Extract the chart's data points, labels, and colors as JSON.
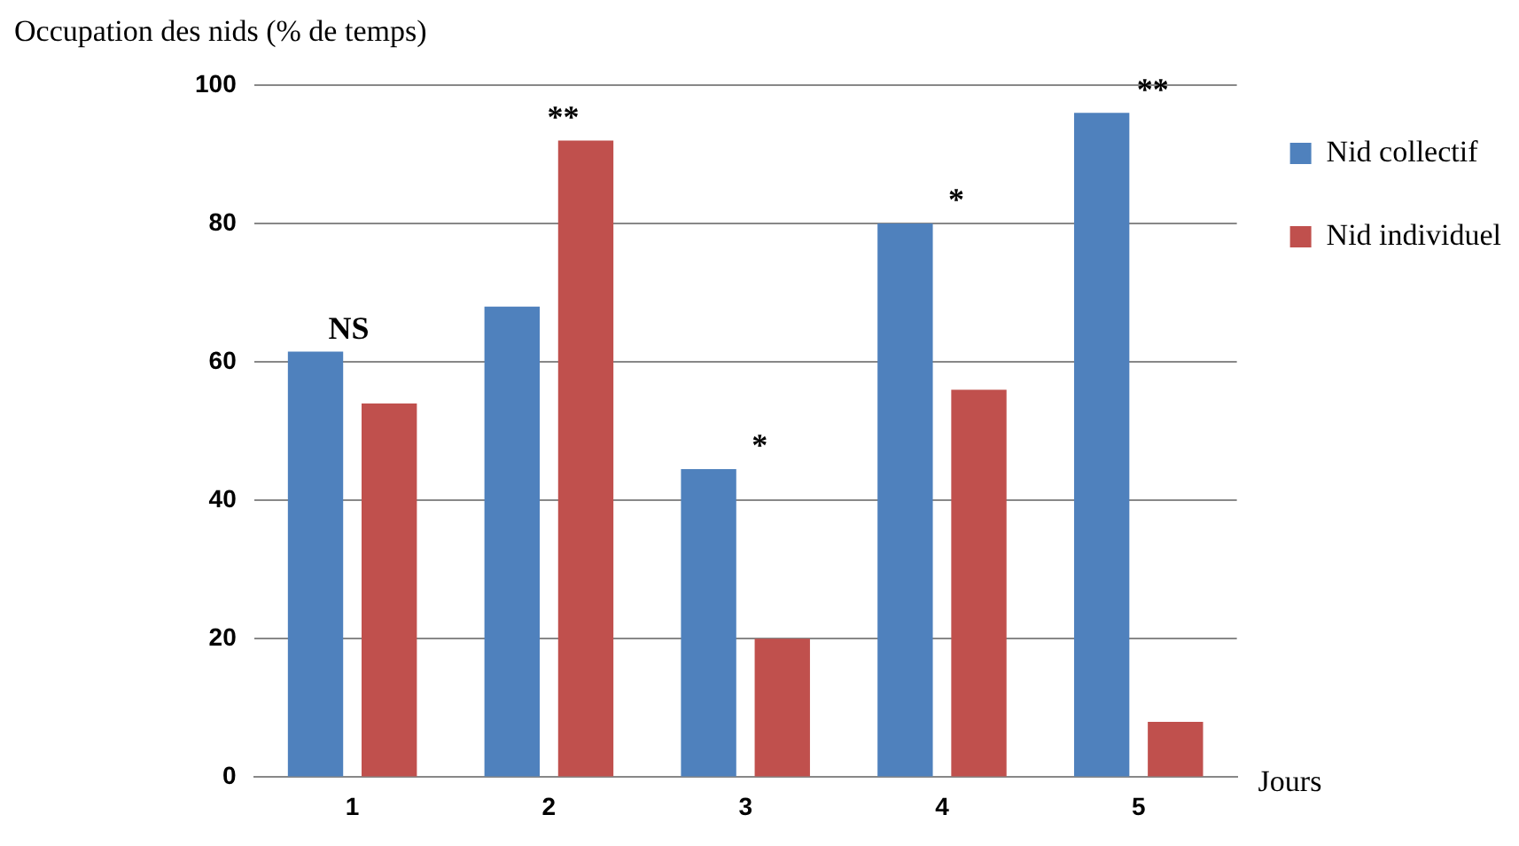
{
  "chart_data": {
    "type": "bar",
    "ylabel": "Occupation des nids (% de temps)",
    "xlabel": "Jours",
    "categories": [
      "1",
      "2",
      "3",
      "4",
      "5"
    ],
    "series": [
      {
        "name": "Nid collectif",
        "color": "#4f81bd",
        "values": [
          61.5,
          68,
          44.5,
          80,
          96
        ]
      },
      {
        "name": "Nid individuel",
        "color": "#c0504d",
        "values": [
          54,
          92,
          20,
          56,
          8
        ]
      }
    ],
    "ylim": [
      0,
      100
    ],
    "yticks": [
      0,
      20,
      40,
      60,
      80,
      100
    ],
    "grid": "y",
    "legend": "right",
    "annotations": [
      "NS",
      "**",
      "*",
      "*",
      "**"
    ]
  }
}
